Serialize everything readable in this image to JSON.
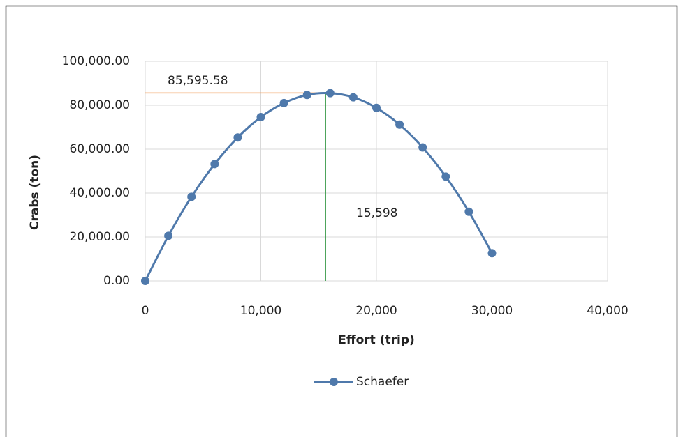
{
  "chart_data": {
    "type": "line",
    "x_label": "Effort (trip)",
    "y_label": "Crabs  (ton)",
    "x": [
      0,
      2000,
      4000,
      6000,
      8000,
      10000,
      12000,
      14000,
      16000,
      18000,
      20000,
      22000,
      24000,
      26000,
      28000,
      30000
    ],
    "series": [
      {
        "name": "Schaefer",
        "color": "#4f79ab",
        "values": [
          0,
          20500,
          38300,
          53200,
          65300,
          74600,
          81000,
          84700,
          85500,
          83600,
          78800,
          71200,
          60800,
          47500,
          31500,
          12600
        ]
      }
    ],
    "xlim": [
      0,
      40000
    ],
    "xticks": [
      0,
      {
        "value": 10000,
        "label": "10,000"
      },
      {
        "value": 20000,
        "label": "20,000"
      },
      {
        "value": 30000,
        "label": "30,000"
      },
      {
        "value": 40000,
        "label": "40,000"
      }
    ],
    "ylim": [
      0,
      100000
    ],
    "yticks": [
      {
        "value": 0,
        "label": "0.00"
      },
      {
        "value": 20000,
        "label": "20,000.00"
      },
      {
        "value": 40000,
        "label": "40,000.00"
      },
      {
        "value": 60000,
        "label": "60,000.00"
      },
      {
        "value": 80000,
        "label": "80,000.00"
      },
      {
        "value": 100000,
        "label": "100,000.00"
      }
    ],
    "grid": true,
    "legend": "bottom",
    "annotation": {
      "x": 15598,
      "y": 85595.58,
      "x_label": "15,598",
      "y_label": "85,595.58",
      "x_color": "#3a9a4a",
      "y_color": "#f0a060"
    }
  }
}
